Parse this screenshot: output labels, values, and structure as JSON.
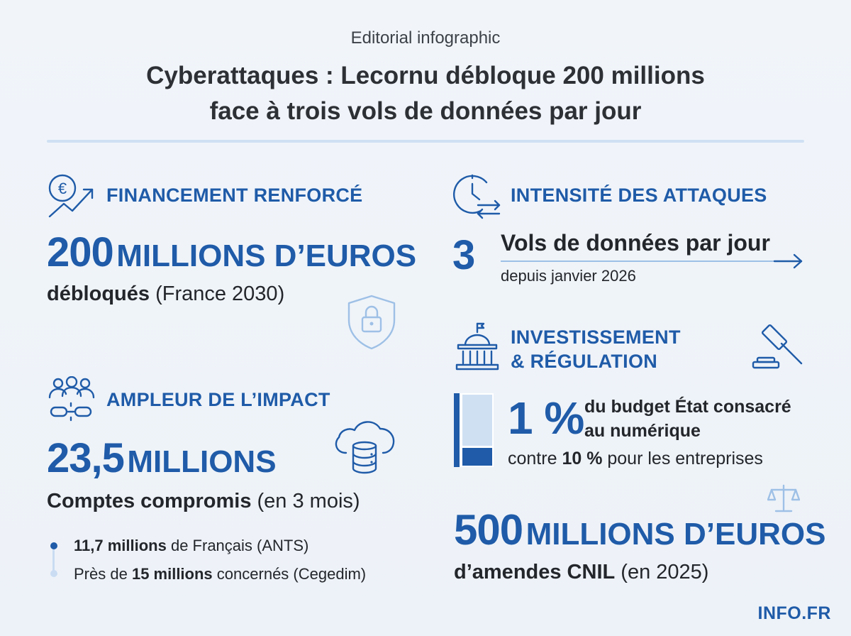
{
  "header": {
    "kicker": "Editorial infographic",
    "title_line1": "Cyberattaques : Lecornu débloque 200 millions",
    "title_line2": "face à trois vols de données par jour"
  },
  "funding": {
    "heading": "FINANCEMENT RENFORCÉ",
    "amount_number": "200",
    "amount_unit": "MILLIONS D’EUROS",
    "label_bold": "débloqués",
    "label_rest": "(France 2030)"
  },
  "impact": {
    "heading": "AMPLEUR DE L’IMPACT",
    "amount_number": "23,5",
    "amount_unit": "MILLIONS",
    "label_bold": "Comptes compromis",
    "label_rest": "(en 3 mois)",
    "bullets": [
      {
        "bold": "11,7 millions",
        "rest": "de Français (ANTS)",
        "prefix": ""
      },
      {
        "prefix": "Près de",
        "bold": "15 millions",
        "rest": "concernés (Cegedim)"
      }
    ]
  },
  "intensity": {
    "heading": "INTENSITÉ DES ATTAQUES",
    "number": "3",
    "label": "Vols de données par jour",
    "sub": "depuis janvier 2026"
  },
  "investment": {
    "heading_line1": "INVESTISSEMENT",
    "heading_line2": "& RÉGULATION",
    "percent": "1 %",
    "percent_label_line1": "du budget État consacré",
    "percent_label_line2": "au numérique",
    "compare_prefix": "contre",
    "compare_bold": "10 %",
    "compare_rest": "pour les entreprises",
    "bar_fill_fraction": 0.25
  },
  "fines": {
    "amount_number": "500",
    "amount_unit": "MILLIONS D’EUROS",
    "label_bold": "d’amendes CNIL",
    "label_rest": "(en 2025)"
  },
  "brand": "INFO.FR",
  "colors": {
    "accent": "#1f5ba8",
    "light_accent": "#c9dcf2",
    "text": "#23262b"
  },
  "icons": [
    "euro-growth-icon",
    "clock-exchange-icon",
    "shield-lock-icon",
    "people-chain-icon",
    "cloud-database-icon",
    "government-building-icon",
    "gavel-icon",
    "scales-icon",
    "arrow-right-icon"
  ]
}
